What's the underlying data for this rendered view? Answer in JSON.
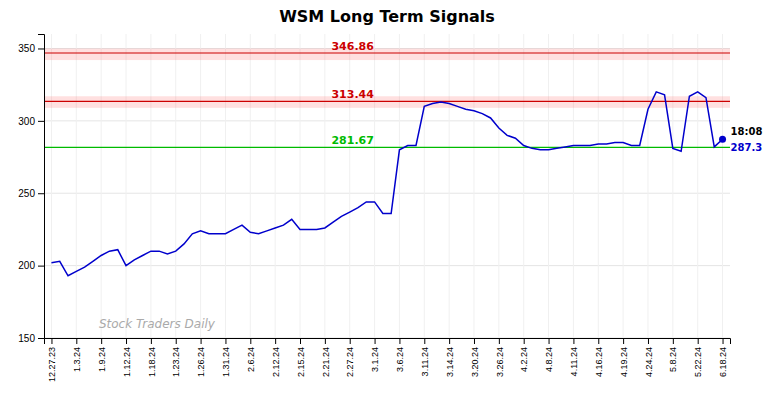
{
  "chart_data": {
    "type": "line",
    "title": "WSM Long Term Signals",
    "categories": [
      "12.27.23",
      null,
      null,
      "1.3.24",
      null,
      null,
      "1.9.24",
      null,
      null,
      "1.12.24",
      null,
      null,
      "1.18.24",
      null,
      null,
      "1.23.24",
      null,
      null,
      "1.26.24",
      null,
      null,
      "1.31.24",
      null,
      null,
      "2.6.24",
      null,
      null,
      "2.12.24",
      null,
      null,
      "2.15.24",
      null,
      null,
      "2.21.24",
      null,
      null,
      "2.27.24",
      null,
      null,
      "3.1.24",
      null,
      null,
      "3.6.24",
      null,
      null,
      "3.11.24",
      null,
      null,
      "3.14.24",
      null,
      null,
      "3.20.24",
      null,
      null,
      "3.26.24",
      null,
      null,
      "4.2.24",
      null,
      null,
      "4.8.24",
      null,
      null,
      "4.11.24",
      null,
      null,
      "4.16.24",
      null,
      null,
      "4.19.24",
      null,
      null,
      "4.24.24",
      null,
      null,
      "5.8.24",
      null,
      null,
      "5.22.24",
      null,
      null,
      "6.18.24"
    ],
    "values": [
      202,
      203,
      193,
      196,
      199,
      203,
      207,
      210,
      211,
      200,
      204,
      207,
      210,
      210,
      208,
      210,
      215,
      222,
      224,
      222,
      222,
      222,
      225,
      228,
      223,
      222,
      224,
      226,
      228,
      232,
      225,
      225,
      225,
      226,
      230,
      234,
      237,
      240,
      244,
      244,
      236,
      236,
      280,
      283,
      283,
      310,
      312,
      313,
      312,
      310,
      308,
      307,
      305,
      302,
      295,
      290,
      288,
      283,
      281,
      280,
      280,
      281,
      282,
      283,
      283,
      283,
      284,
      284,
      285,
      285,
      283,
      283,
      308,
      320,
      318,
      281,
      279,
      317,
      320,
      316,
      282,
      287.3
    ],
    "color": "#0000CC",
    "ylim": [
      150,
      360
    ],
    "yticks": [
      150,
      200,
      250,
      300,
      350
    ],
    "grid": true,
    "reference_lines": [
      {
        "value": 346.86,
        "label": "346.86",
        "color": "#cc0000",
        "band": [
          342,
          350
        ],
        "band_color": "#ff6666"
      },
      {
        "value": 313.44,
        "label": "313.44",
        "color": "#cc0000",
        "band": [
          309,
          317
        ],
        "band_color": "#ff6666"
      },
      {
        "value": 281.67,
        "label": "281.67",
        "color": "#00bb00"
      }
    ],
    "annotations": [
      "18:08",
      "287.3",
      "Stock Traders Daily"
    ]
  }
}
